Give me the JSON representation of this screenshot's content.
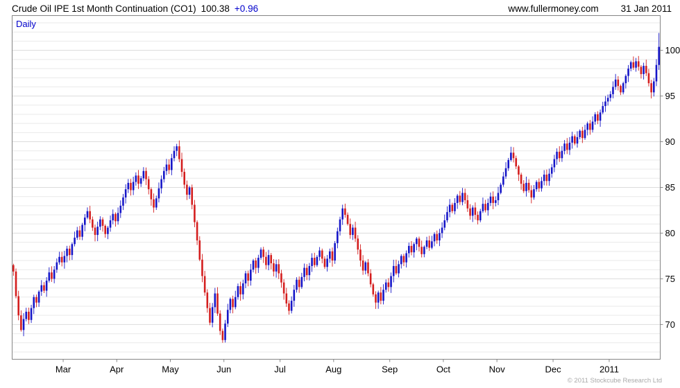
{
  "header": {
    "title": "Crude Oil IPE 1st Month Continuation (CO1)",
    "price": "100.38",
    "change": "+0.96",
    "website": "www.fullermoney.com",
    "date": "31 Jan 2011"
  },
  "chart": {
    "frequency_label": "Daily",
    "copyright": "© 2011 Stockcube Research Ltd",
    "style": {
      "accent": "#0000cc",
      "border": "#858585",
      "grid_minor": "#e9e9e9",
      "grid_major": "#dcdcdc",
      "copyright_color": "#a9a9a9"
    }
  },
  "chart_data": {
    "type": "candlestick",
    "title": "Crude Oil IPE 1st Month Continuation (CO1)",
    "period": "Daily",
    "last_price": 100.38,
    "change": 0.96,
    "as_of": "31 Jan 2011",
    "ylim": [
      66.2,
      103.8
    ],
    "y_ticks": [
      70,
      75,
      80,
      85,
      90,
      95,
      100
    ],
    "colors": {
      "up": "#1616c8",
      "down": "#d41e1e"
    },
    "first_open": 76.5,
    "final_high": 101.9,
    "months": [
      {
        "label": "",
        "closes": [
          75.8,
          73.1,
          71.0,
          69.4,
          70.6,
          71.4,
          70.5,
          71.8,
          73.0,
          72.4,
          73.6,
          74.3,
          73.7,
          74.8,
          75.7,
          75.0,
          76.0,
          76.8,
          77.4,
          76.8
        ]
      },
      {
        "label": "Mar",
        "closes": [
          77.5,
          78.3,
          77.6,
          78.8,
          79.5,
          80.3,
          79.6,
          80.9,
          81.7,
          82.4,
          81.5,
          80.6,
          79.8,
          80.7,
          81.5,
          80.8,
          79.9,
          80.6,
          81.4,
          82.1,
          81.3
        ]
      },
      {
        "label": "Apr",
        "closes": [
          82.2,
          83.0,
          83.9,
          84.8,
          85.5,
          84.7,
          85.6,
          86.3,
          85.4,
          86.0,
          86.8,
          85.9,
          84.8,
          83.7,
          82.8,
          83.8,
          84.9,
          85.9,
          86.8,
          87.5,
          86.9
        ]
      },
      {
        "label": "May",
        "closes": [
          88.2,
          89.0,
          89.5,
          88.1,
          86.7,
          85.3,
          84.2,
          85.0,
          83.1,
          81.2,
          79.2,
          77.1,
          75.3,
          73.5,
          71.8,
          70.2,
          71.9,
          73.4,
          71.2,
          69.3,
          68.3
        ]
      },
      {
        "label": "Jun",
        "closes": [
          70.1,
          71.6,
          72.8,
          71.9,
          73.0,
          74.2,
          73.3,
          74.5,
          75.6,
          74.8,
          76.0,
          77.0,
          76.2,
          77.3,
          78.2,
          77.4,
          76.5,
          77.6,
          76.7,
          75.8,
          76.6,
          75.6
        ]
      },
      {
        "label": "Jul",
        "closes": [
          74.6,
          73.4,
          72.3,
          71.5,
          72.6,
          73.8,
          74.9,
          74.1,
          75.2,
          76.2,
          75.4,
          76.4,
          77.3,
          76.5,
          77.4,
          78.1,
          77.2,
          76.3,
          77.2,
          78.0,
          77.0
        ]
      },
      {
        "label": "Aug",
        "closes": [
          78.9,
          80.2,
          81.5,
          82.7,
          82.0,
          81.0,
          79.8,
          80.6,
          79.4,
          78.2,
          77.0,
          75.9,
          76.8,
          75.6,
          74.4,
          73.3,
          72.4,
          73.5,
          72.6,
          73.8,
          74.6,
          74.1
        ]
      },
      {
        "label": "Sep",
        "closes": [
          75.3,
          76.4,
          75.6,
          76.6,
          77.5,
          76.8,
          77.8,
          78.6,
          77.9,
          78.8,
          79.4,
          78.5,
          77.7,
          78.5,
          79.2,
          78.4,
          79.1,
          79.9,
          79.2,
          80.0,
          80.6
        ]
      },
      {
        "label": "Oct",
        "closes": [
          81.4,
          82.3,
          83.1,
          82.4,
          83.3,
          84.1,
          83.4,
          84.4,
          83.6,
          82.7,
          81.9,
          82.8,
          82.0,
          81.4,
          82.4,
          83.2,
          82.5,
          83.3,
          84.0,
          83.3,
          83.6
        ]
      },
      {
        "label": "Nov",
        "closes": [
          84.4,
          85.3,
          86.2,
          87.1,
          88.0,
          88.8,
          88.2,
          87.3,
          86.4,
          85.4,
          84.6,
          85.5,
          84.7,
          83.9,
          84.8,
          85.6,
          84.9,
          85.7,
          86.4,
          85.7,
          86.5,
          87.2
        ]
      },
      {
        "label": "Dec",
        "closes": [
          88.1,
          88.9,
          88.2,
          89.0,
          89.8,
          89.1,
          89.9,
          90.6,
          89.8,
          90.5,
          91.2,
          90.4,
          91.3,
          92.0,
          91.3,
          92.2,
          93.0,
          92.3,
          93.2,
          93.9,
          94.4,
          94.8
        ]
      },
      {
        "label": "2011",
        "closes": [
          95.2,
          96.0,
          96.8,
          96.1,
          95.4,
          96.4,
          97.2,
          98.0,
          98.7,
          98.1,
          98.8,
          98.2,
          97.4,
          98.3,
          97.5,
          96.4,
          95.4,
          96.6,
          98.4,
          100.38
        ]
      }
    ]
  }
}
